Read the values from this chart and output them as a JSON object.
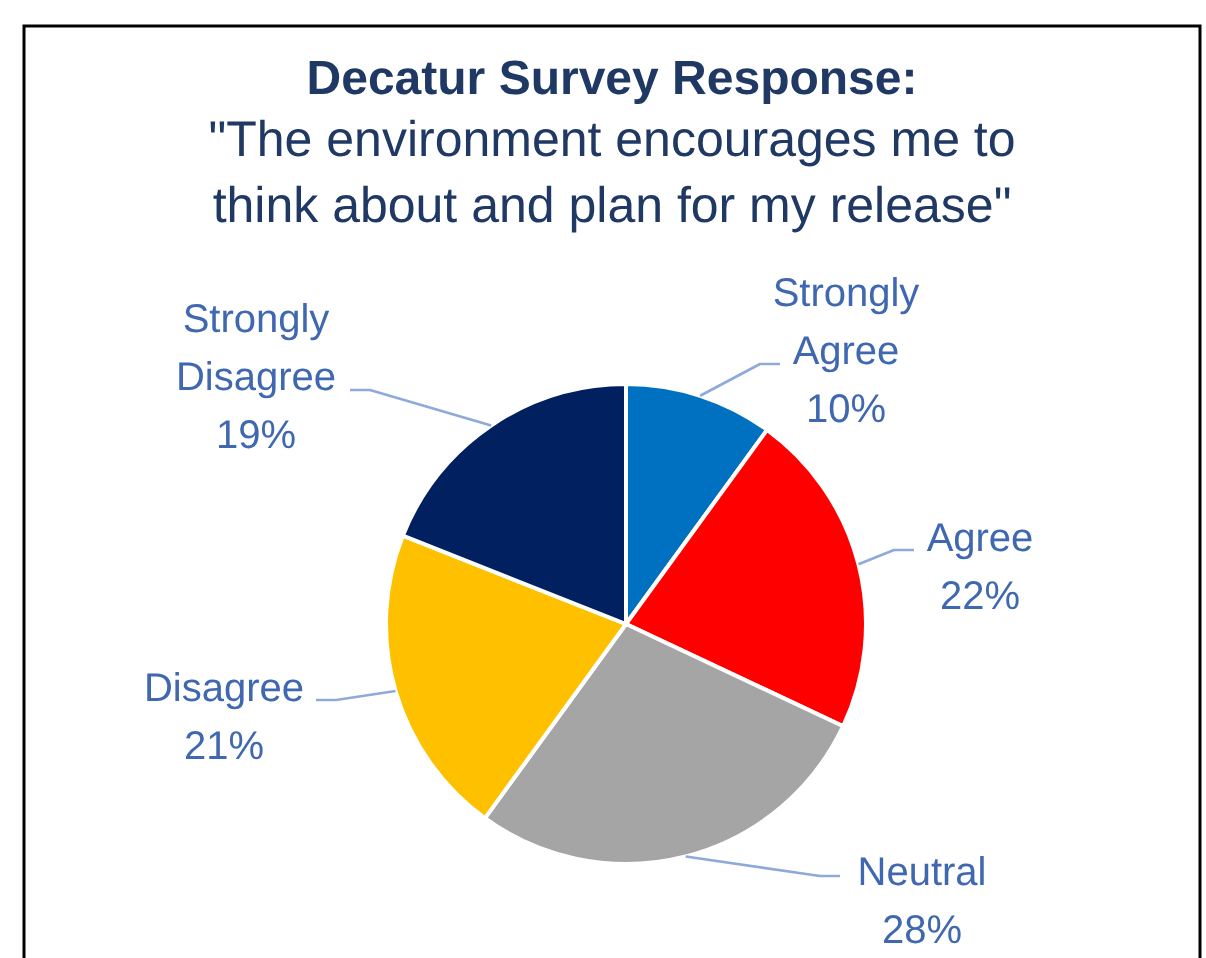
{
  "chart_data": {
    "type": "pie",
    "title": "Decatur Survey Response:",
    "subtitle": "\"The environment encourages me to think about and plan for my release\"",
    "categories": [
      "Strongly Agree",
      "Agree",
      "Neutral",
      "Disagree",
      "Strongly Disagree"
    ],
    "values": [
      10,
      22,
      28,
      21,
      19
    ],
    "value_labels": [
      "10%",
      "22%",
      "28%",
      "21%",
      "19%"
    ],
    "colors": [
      "#0070c0",
      "#ff0000",
      "#a5a5a5",
      "#ffc000",
      "#002060"
    ]
  }
}
